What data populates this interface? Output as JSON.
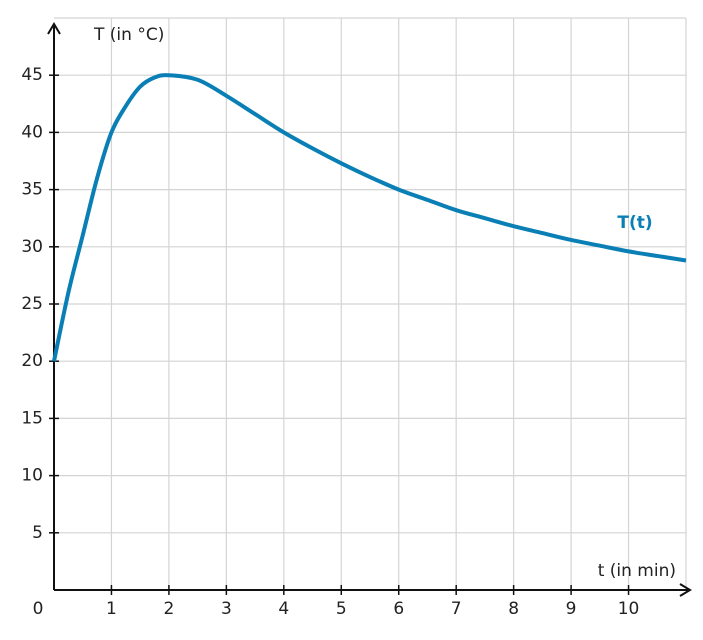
{
  "chart_data": {
    "type": "line",
    "x_label": "t (in min)",
    "y_label": "T (in °C)",
    "x": [
      0,
      0.25,
      0.5,
      0.75,
      1,
      1.25,
      1.5,
      1.75,
      2,
      2.5,
      3,
      3.5,
      4,
      4.5,
      5,
      5.5,
      6,
      6.5,
      7,
      7.5,
      8,
      8.5,
      9,
      9.5,
      10,
      10.5,
      11
    ],
    "series": [
      {
        "name": "T(t)",
        "color": "#0a7fb5",
        "values": [
          20,
          26,
          31,
          36,
          40,
          42.3,
          44,
          44.8,
          45,
          44.6,
          43.2,
          41.6,
          40,
          38.6,
          37.3,
          36.1,
          35,
          34.1,
          33.2,
          32.5,
          31.8,
          31.2,
          30.6,
          30.1,
          29.6,
          29.2,
          28.8
        ]
      }
    ],
    "xlim": [
      0,
      11
    ],
    "ylim": [
      0,
      50
    ],
    "xticks": [
      0,
      1,
      2,
      3,
      4,
      5,
      6,
      7,
      8,
      9,
      10
    ],
    "yticks": [
      5,
      10,
      15,
      20,
      25,
      30,
      35,
      40,
      45
    ],
    "grid": true
  }
}
